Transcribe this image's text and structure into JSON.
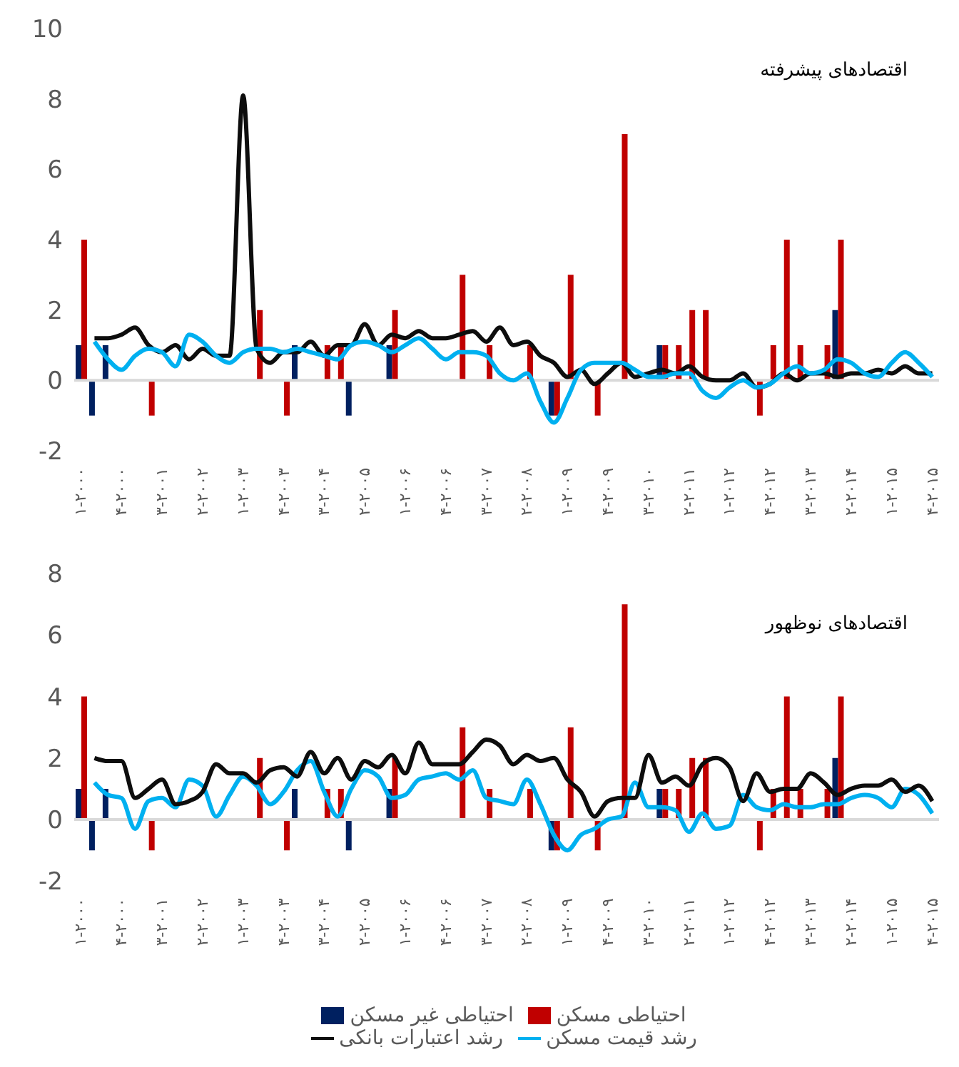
{
  "chart_data": [
    {
      "type": "bar",
      "title": "اقتصادهای پیشرفته",
      "categories": [
        "۱-۲۰۰۰",
        null,
        null,
        "۴-۲۰۰۰",
        null,
        null,
        "۳-۲۰۰۱",
        null,
        null,
        "۲-۲۰۰۲",
        null,
        null,
        "۱-۲۰۰۳",
        null,
        null,
        "۴-۲۰۰۳",
        null,
        null,
        "۳-۲۰۰۴",
        null,
        null,
        "۲-۲۰۰۵",
        null,
        null,
        "۱-۲۰۰۶",
        null,
        null,
        "۴-۲۰۰۶",
        null,
        null,
        "۳-۲۰۰۷",
        null,
        null,
        "۲-۲۰۰۸",
        null,
        null,
        "۱-۲۰۰۹",
        null,
        null,
        "۴-۲۰۰۹",
        null,
        null,
        "۳-۲۰۱۰",
        null,
        null,
        "۲-۲۰۱۱",
        null,
        null,
        "۱-۲۰۱۲",
        null,
        null,
        "۴-۲۰۱۲",
        null,
        null,
        "۳-۲۰۱۳",
        null,
        null,
        "۲-۲۰۱۴",
        null,
        null,
        "۱-۲۰۱۵",
        null,
        null,
        "۴-۲۰۱۵"
      ],
      "series": [
        {
          "color": "#002060",
          "values": [
            1,
            -1,
            1,
            null,
            null,
            null,
            null,
            null,
            null,
            null,
            null,
            null,
            null,
            null,
            null,
            null,
            1,
            null,
            null,
            null,
            -1,
            null,
            null,
            1,
            null,
            null,
            null,
            null,
            null,
            null,
            null,
            null,
            null,
            null,
            null,
            -1,
            null,
            null,
            null,
            null,
            null,
            null,
            null,
            1,
            null,
            null,
            null,
            null,
            null,
            null,
            null,
            null,
            null,
            null,
            null,
            null,
            2,
            null,
            null,
            null,
            null,
            null,
            null,
            null
          ]
        },
        {
          "color": "#c00000",
          "values": [
            4,
            null,
            null,
            null,
            null,
            -1,
            null,
            null,
            null,
            null,
            null,
            null,
            null,
            2,
            null,
            -1,
            null,
            null,
            1,
            1,
            null,
            null,
            null,
            2,
            null,
            null,
            null,
            null,
            3,
            null,
            1,
            null,
            null,
            1,
            null,
            -1,
            3,
            null,
            -1,
            null,
            7,
            null,
            null,
            1,
            1,
            2,
            2,
            null,
            null,
            null,
            -1,
            1,
            4,
            1,
            null,
            1,
            4,
            null,
            null,
            null,
            null,
            null,
            null,
            null
          ]
        },
        {
          "type": "line",
          "color": "#0d0d0d",
          "values": [
            null,
            1.2,
            1.2,
            1.3,
            1.5,
            1.0,
            0.8,
            1.0,
            0.6,
            0.9,
            0.7,
            0.7,
            8.1,
            0.9,
            0.5,
            0.8,
            0.8,
            1.1,
            0.7,
            1.0,
            1.0,
            1.6,
            1.0,
            1.3,
            1.2,
            1.4,
            1.2,
            1.2,
            1.3,
            1.4,
            1.1,
            1.5,
            1.0,
            1.1,
            0.7,
            0.5,
            0.1,
            0.3,
            -0.1,
            0.2,
            0.5,
            0.1,
            0.2,
            0.3,
            0.2,
            0.4,
            0.1,
            0,
            0,
            0.2,
            -0.2,
            -0.1,
            0.2,
            0,
            0.2,
            0.2,
            0.1,
            0.2,
            0.2,
            0.3,
            0.2,
            0.4,
            0.2,
            0.2
          ]
        },
        {
          "type": "line",
          "color": "#00b0f0",
          "values": [
            null,
            1.1,
            0.6,
            0.3,
            0.7,
            0.9,
            0.8,
            0.4,
            1.3,
            1.1,
            0.7,
            0.5,
            0.8,
            0.9,
            0.9,
            0.8,
            0.9,
            0.8,
            0.7,
            0.6,
            1.0,
            1.1,
            1.0,
            0.8,
            1.0,
            1.2,
            0.9,
            0.6,
            0.8,
            0.8,
            0.7,
            0.2,
            0,
            0.2,
            -0.6,
            -1.2,
            -0.5,
            0.3,
            0.5,
            0.5,
            0.5,
            0.3,
            0.1,
            0.1,
            0.2,
            0.2,
            -0.3,
            -0.5,
            -0.2,
            0,
            -0.2,
            -0.1,
            0.2,
            0.4,
            0.2,
            0.3,
            0.6,
            0.5,
            0.2,
            0.1,
            0.5,
            0.8,
            0.5,
            0.1
          ]
        }
      ],
      "ylim": [
        -2,
        10
      ],
      "yticks": [
        -2,
        0,
        2,
        4,
        6,
        8,
        10
      ],
      "marker": "none",
      "legend": false,
      "ref_lines": [
        {
          "axis": "y",
          "value": 0,
          "color": "#d9d9d9"
        }
      ]
    },
    {
      "type": "bar",
      "title": "اقتصادهای نوظهور",
      "categories": [
        "۱-۲۰۰۰",
        null,
        null,
        "۴-۲۰۰۰",
        null,
        null,
        "۳-۲۰۰۱",
        null,
        null,
        "۲-۲۰۰۲",
        null,
        null,
        "۱-۲۰۰۳",
        null,
        null,
        "۴-۲۰۰۳",
        null,
        null,
        "۳-۲۰۰۴",
        null,
        null,
        "۲-۲۰۰۵",
        null,
        null,
        "۱-۲۰۰۶",
        null,
        null,
        "۴-۲۰۰۶",
        null,
        null,
        "۳-۲۰۰۷",
        null,
        null,
        "۲-۲۰۰۸",
        null,
        null,
        "۱-۲۰۰۹",
        null,
        null,
        "۴-۲۰۰۹",
        null,
        null,
        "۳-۲۰۱۰",
        null,
        null,
        "۲-۲۰۱۱",
        null,
        null,
        "۱-۲۰۱۲",
        null,
        null,
        "۴-۲۰۱۲",
        null,
        null,
        "۳-۲۰۱۳",
        null,
        null,
        "۲-۲۰۱۴",
        null,
        null,
        "۱-۲۰۱۵",
        null,
        null,
        "۴-۲۰۱۵"
      ],
      "series": [
        {
          "name": "احتیاطی غیر مسکن",
          "color": "#002060",
          "values": [
            1,
            -1,
            1,
            null,
            null,
            null,
            null,
            null,
            null,
            null,
            null,
            null,
            null,
            null,
            null,
            null,
            1,
            null,
            null,
            null,
            -1,
            null,
            null,
            1,
            null,
            null,
            null,
            null,
            null,
            null,
            null,
            null,
            null,
            null,
            null,
            -1,
            null,
            null,
            null,
            null,
            null,
            null,
            null,
            1,
            null,
            null,
            null,
            null,
            null,
            null,
            null,
            null,
            null,
            null,
            null,
            null,
            2,
            null,
            null,
            null,
            null,
            null,
            null,
            null
          ]
        },
        {
          "name": "احتیاطی مسکن",
          "color": "#c00000",
          "values": [
            4,
            null,
            null,
            null,
            null,
            -1,
            null,
            null,
            null,
            null,
            null,
            null,
            null,
            2,
            null,
            -1,
            null,
            null,
            1,
            1,
            null,
            null,
            null,
            2,
            null,
            null,
            null,
            null,
            3,
            null,
            1,
            null,
            null,
            1,
            null,
            -1,
            3,
            null,
            -1,
            null,
            7,
            null,
            null,
            1,
            1,
            2,
            2,
            null,
            null,
            null,
            -1,
            1,
            4,
            1,
            null,
            1,
            4,
            null,
            null,
            null,
            null,
            null,
            null,
            null
          ]
        },
        {
          "type": "line",
          "name": "رشد قیمت مسکن",
          "color": "#00b0f0",
          "values": [
            null,
            1.2,
            0.8,
            0.7,
            -0.3,
            0.6,
            0.7,
            0.4,
            1.3,
            1.1,
            0.1,
            0.8,
            1.4,
            1.1,
            0.5,
            0.9,
            1.6,
            1.9,
            0.9,
            0.1,
            1.0,
            1.6,
            1.4,
            0.7,
            0.8,
            1.3,
            1.4,
            1.5,
            1.3,
            1.6,
            0.7,
            0.6,
            0.5,
            1.3,
            0.5,
            -0.5,
            -1.0,
            -0.5,
            -0.3,
            0,
            0.1,
            1.2,
            0.4,
            0.4,
            0.3,
            -0.4,
            0.2,
            -0.3,
            -0.2,
            0.8,
            0.4,
            0.3,
            0.5,
            0.4,
            0.4,
            0.5,
            0.5,
            0.7,
            0.8,
            0.7,
            0.4,
            1.0,
            0.8,
            0.2
          ]
        },
        {
          "type": "line",
          "name": "رشد اعتبارات بانکی",
          "color": "#0d0d0d",
          "values": [
            null,
            2.0,
            1.9,
            1.9,
            0.7,
            1.0,
            1.3,
            0.5,
            0.6,
            0.9,
            1.8,
            1.5,
            1.5,
            1.2,
            1.6,
            1.7,
            1.4,
            2.2,
            1.5,
            2.0,
            1.3,
            1.9,
            1.7,
            2.1,
            1.5,
            2.5,
            1.8,
            1.8,
            1.8,
            2.2,
            2.6,
            2.4,
            1.8,
            2.1,
            1.9,
            2.0,
            1.3,
            0.9,
            0.1,
            0.6,
            0.7,
            0.7,
            2.1,
            1.2,
            1.4,
            1.1,
            1.8,
            2.0,
            1.7,
            0.6,
            1.5,
            0.9,
            1.0,
            1.0,
            1.5,
            1.2,
            0.8,
            1.0,
            1.1,
            1.1,
            1.3,
            0.9,
            1.1,
            0.6
          ]
        }
      ],
      "ylim": [
        -2,
        8
      ],
      "yticks": [
        -2,
        0,
        2,
        4,
        6,
        8
      ],
      "marker": "none",
      "legend": "bottom",
      "ref_lines": [
        {
          "axis": "y",
          "value": 0,
          "color": "#d9d9d9"
        }
      ]
    }
  ]
}
